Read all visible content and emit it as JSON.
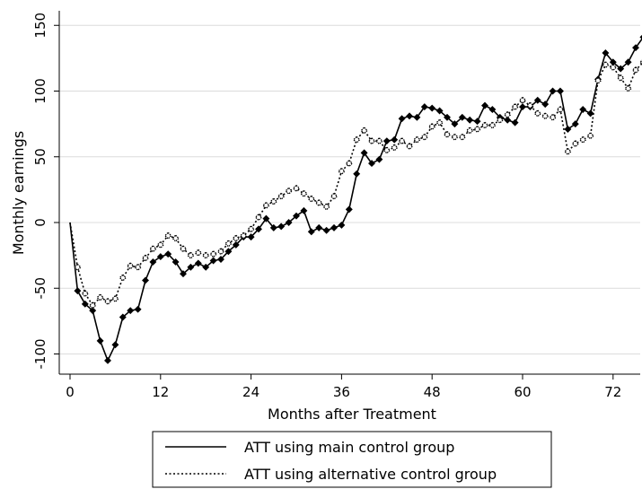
{
  "chart_data": {
    "type": "line",
    "xlabel": "Months after Treatment",
    "ylabel": "Monthly earnings",
    "xlim": [
      -2,
      76
    ],
    "ylim": [
      -115,
      155
    ],
    "xticks": [
      0,
      12,
      24,
      36,
      48,
      60,
      72
    ],
    "yticks": [
      -100,
      -50,
      0,
      50,
      100,
      150
    ],
    "grid": "horizontal",
    "legend_position": "bottom",
    "series": [
      {
        "name": "ATT using main control group",
        "style": "solid",
        "color": "#000000",
        "x": [
          0,
          1,
          2,
          3,
          4,
          5,
          6,
          7,
          8,
          9,
          10,
          11,
          12,
          13,
          14,
          15,
          16,
          17,
          18,
          19,
          20,
          21,
          22,
          23,
          24,
          25,
          26,
          27,
          28,
          29,
          30,
          31,
          32,
          33,
          34,
          35,
          36,
          37,
          38,
          39,
          40,
          41,
          42,
          43,
          44,
          45,
          46,
          47,
          48,
          49,
          50,
          51,
          52,
          53,
          54,
          55,
          56,
          57,
          58,
          59,
          60,
          61,
          62,
          63,
          64,
          65,
          66,
          67,
          68,
          69,
          70,
          71,
          72,
          73,
          74,
          75,
          76
        ],
        "y": [
          0,
          -52,
          -62,
          -67,
          -90,
          -105,
          -93,
          -72,
          -67,
          -66,
          -44,
          -30,
          -26,
          -24,
          -30,
          -39,
          -34,
          -31,
          -34,
          -29,
          -28,
          -22,
          -17,
          -11,
          -11,
          -5,
          3,
          -4,
          -3,
          0,
          5,
          9,
          -7,
          -4,
          -6,
          -4,
          -2,
          10,
          37,
          53,
          45,
          48,
          62,
          63,
          79,
          81,
          80,
          88,
          87,
          85,
          80,
          75,
          80,
          78,
          77,
          89,
          86,
          80,
          78,
          76,
          88,
          88,
          93,
          90,
          100,
          100,
          71,
          75,
          86,
          83,
          109,
          129,
          122,
          117,
          122,
          133,
          141
        ]
      },
      {
        "name": "ATT using alternative control group",
        "style": "dotted",
        "color": "#000000",
        "x": [
          0,
          1,
          2,
          3,
          4,
          5,
          6,
          7,
          8,
          9,
          10,
          11,
          12,
          13,
          14,
          15,
          16,
          17,
          18,
          19,
          20,
          21,
          22,
          23,
          24,
          25,
          26,
          27,
          28,
          29,
          30,
          31,
          32,
          33,
          34,
          35,
          36,
          37,
          38,
          39,
          40,
          41,
          42,
          43,
          44,
          45,
          46,
          47,
          48,
          49,
          50,
          51,
          52,
          53,
          54,
          55,
          56,
          57,
          58,
          59,
          60,
          61,
          62,
          63,
          64,
          65,
          66,
          67,
          68,
          69,
          70,
          71,
          72,
          73,
          74,
          75,
          76
        ],
        "y": [
          0,
          -34,
          -54,
          -63,
          -57,
          -60,
          -58,
          -42,
          -33,
          -34,
          -27,
          -20,
          -17,
          -10,
          -12,
          -20,
          -25,
          -23,
          -25,
          -24,
          -22,
          -16,
          -12,
          -10,
          -5,
          4,
          13,
          16,
          20,
          24,
          26,
          22,
          18,
          15,
          12,
          20,
          39,
          45,
          63,
          70,
          62,
          62,
          55,
          57,
          62,
          58,
          63,
          65,
          73,
          76,
          67,
          65,
          65,
          70,
          71,
          74,
          74,
          78,
          82,
          88,
          93,
          89,
          83,
          81,
          80,
          86,
          54,
          60,
          63,
          66,
          108,
          120,
          118,
          110,
          102,
          116,
          122
        ]
      }
    ]
  }
}
